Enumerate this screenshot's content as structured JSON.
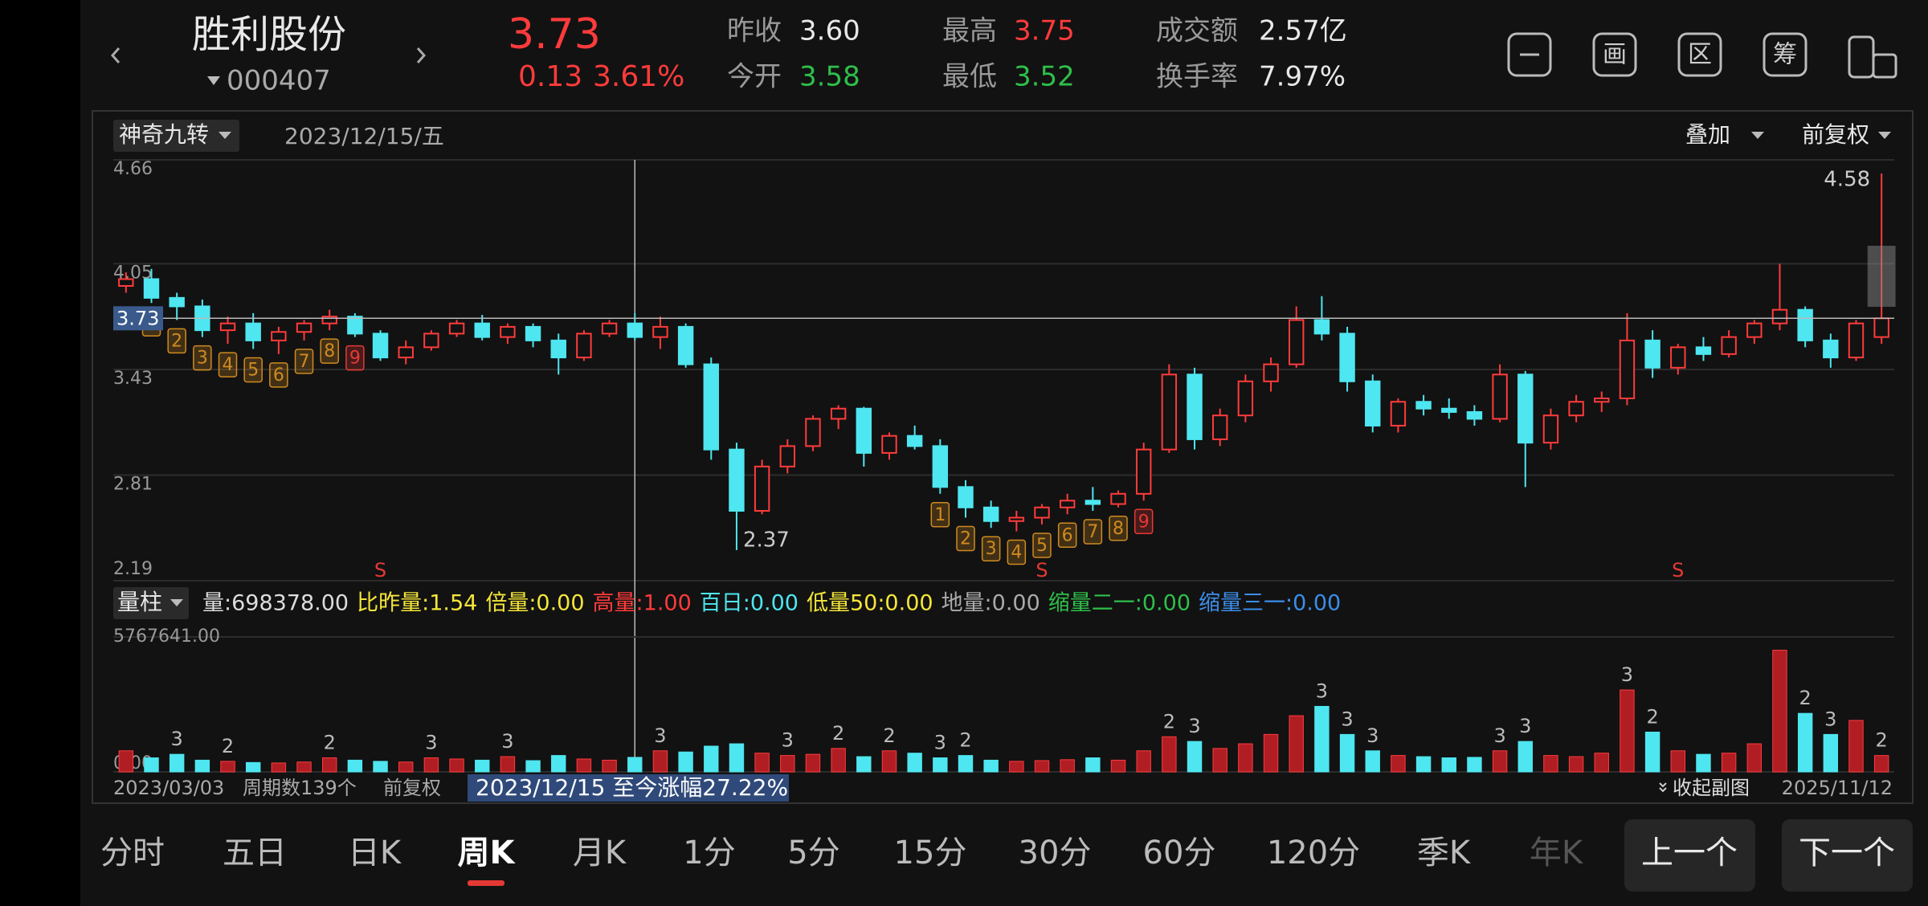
{
  "header": {
    "name": "胜利股份",
    "code": "000407",
    "price": "3.73",
    "change": "0.13",
    "change_pct": "3.61%",
    "stats": [
      {
        "label": "昨收",
        "value": "3.60",
        "color": "#e8e8e8"
      },
      {
        "label": "今开",
        "value": "3.58",
        "color": "#2fbf4a"
      },
      {
        "label": "最高",
        "value": "3.75",
        "color": "#ff3b3b"
      },
      {
        "label": "最低",
        "value": "3.52",
        "color": "#2fbf4a"
      },
      {
        "label": "成交额",
        "value": "2.57亿",
        "color": "#e8e8e8"
      },
      {
        "label": "换手率",
        "value": "7.97%",
        "color": "#e8e8e8"
      }
    ],
    "icons": [
      "画",
      "区",
      "筹"
    ]
  },
  "toolbar": {
    "indicator": "神奇九转",
    "date": "2023/12/15/五",
    "overlay": "叠加",
    "adjust": "前复权"
  },
  "chart_data": {
    "type": "candlestick",
    "ylim": [
      2.19,
      4.66
    ],
    "yticks": [
      4.66,
      4.05,
      3.43,
      2.81,
      2.19
    ],
    "grid": true,
    "current_price": 3.73,
    "crosshair_index": 20,
    "up_color": "#ff3b3b",
    "down_color": "#4ee6f0",
    "turn_color": "#d08a20",
    "nine_color": "#e53935",
    "signal_color": "#e53935",
    "open": [
      3.92,
      3.96,
      3.85,
      3.8,
      3.66,
      3.7,
      3.6,
      3.65,
      3.7,
      3.74,
      3.64,
      3.5,
      3.56,
      3.64,
      3.7,
      3.62,
      3.68,
      3.6,
      3.5,
      3.64,
      3.7,
      3.62,
      3.68,
      3.46,
      2.96,
      2.6,
      2.86,
      2.98,
      3.14,
      3.2,
      2.94,
      3.04,
      2.98,
      2.74,
      2.62,
      2.54,
      2.56,
      2.62,
      2.66,
      2.64,
      2.7,
      2.96,
      3.4,
      3.02,
      3.16,
      3.36,
      3.46,
      3.72,
      3.64,
      3.36,
      3.1,
      3.24,
      3.2,
      3.18,
      3.14,
      3.4,
      3.0,
      3.16,
      3.24,
      3.26,
      3.6,
      3.44,
      3.56,
      3.52,
      3.62,
      3.7,
      3.78,
      3.6,
      3.5,
      3.62
    ],
    "high": [
      4.0,
      4.02,
      3.88,
      3.84,
      3.74,
      3.76,
      3.68,
      3.72,
      3.78,
      3.76,
      3.66,
      3.6,
      3.66,
      3.72,
      3.75,
      3.7,
      3.7,
      3.64,
      3.66,
      3.72,
      3.76,
      3.74,
      3.7,
      3.5,
      3.0,
      2.9,
      3.02,
      3.16,
      3.22,
      3.21,
      3.06,
      3.1,
      3.02,
      2.78,
      2.66,
      2.6,
      2.64,
      2.7,
      2.74,
      2.72,
      3.0,
      3.46,
      3.44,
      3.2,
      3.4,
      3.5,
      3.8,
      3.86,
      3.68,
      3.4,
      3.26,
      3.28,
      3.26,
      3.22,
      3.46,
      3.42,
      3.2,
      3.28,
      3.3,
      3.76,
      3.66,
      3.58,
      3.62,
      3.66,
      3.72,
      4.05,
      3.8,
      3.64,
      3.72,
      4.58
    ],
    "low": [
      3.88,
      3.82,
      3.72,
      3.62,
      3.58,
      3.55,
      3.52,
      3.6,
      3.66,
      3.62,
      3.48,
      3.46,
      3.54,
      3.62,
      3.6,
      3.58,
      3.56,
      3.4,
      3.48,
      3.62,
      3.6,
      3.55,
      3.44,
      2.9,
      2.37,
      2.58,
      2.82,
      2.95,
      3.08,
      2.86,
      2.9,
      2.96,
      2.7,
      2.56,
      2.5,
      2.48,
      2.52,
      2.58,
      2.6,
      2.62,
      2.66,
      2.94,
      2.96,
      2.98,
      3.12,
      3.3,
      3.44,
      3.6,
      3.3,
      3.06,
      3.06,
      3.16,
      3.14,
      3.1,
      3.12,
      2.74,
      2.96,
      3.12,
      3.18,
      3.22,
      3.38,
      3.4,
      3.48,
      3.5,
      3.58,
      3.66,
      3.56,
      3.44,
      3.48,
      3.58
    ],
    "close": [
      3.96,
      3.85,
      3.8,
      3.66,
      3.7,
      3.6,
      3.65,
      3.7,
      3.74,
      3.64,
      3.5,
      3.56,
      3.64,
      3.7,
      3.62,
      3.68,
      3.6,
      3.5,
      3.64,
      3.7,
      3.62,
      3.68,
      3.46,
      2.96,
      2.6,
      2.86,
      2.98,
      3.14,
      3.2,
      2.94,
      3.04,
      2.98,
      2.74,
      2.62,
      2.54,
      2.56,
      2.62,
      2.66,
      2.64,
      2.7,
      2.96,
      3.4,
      3.02,
      3.16,
      3.36,
      3.46,
      3.72,
      3.64,
      3.36,
      3.1,
      3.24,
      3.2,
      3.18,
      3.14,
      3.4,
      3.0,
      3.16,
      3.24,
      3.26,
      3.6,
      3.44,
      3.56,
      3.52,
      3.62,
      3.7,
      3.78,
      3.6,
      3.5,
      3.7,
      3.73
    ],
    "max_index": 69,
    "min_index": 24,
    "nine_turn": [
      null,
      1,
      2,
      3,
      4,
      5,
      6,
      7,
      8,
      9,
      null,
      null,
      null,
      null,
      null,
      null,
      null,
      null,
      null,
      null,
      null,
      null,
      null,
      null,
      null,
      null,
      null,
      null,
      null,
      null,
      null,
      null,
      1,
      2,
      3,
      4,
      5,
      6,
      7,
      8,
      9,
      null,
      null,
      null,
      null,
      null,
      null,
      null,
      null,
      null,
      null,
      null,
      null,
      null,
      null,
      null,
      null,
      null,
      null,
      null,
      null,
      null,
      null,
      null,
      null,
      null,
      null,
      null,
      null,
      null
    ],
    "signals": [
      null,
      null,
      null,
      null,
      null,
      null,
      null,
      null,
      null,
      null,
      "S",
      null,
      null,
      null,
      null,
      null,
      null,
      null,
      null,
      null,
      null,
      null,
      null,
      null,
      null,
      null,
      null,
      null,
      null,
      null,
      null,
      null,
      null,
      null,
      null,
      null,
      "S",
      null,
      null,
      null,
      null,
      null,
      null,
      null,
      null,
      null,
      null,
      null,
      null,
      null,
      null,
      null,
      null,
      null,
      null,
      null,
      null,
      null,
      null,
      null,
      null,
      "S",
      null,
      null,
      null,
      null,
      null,
      null,
      null,
      null
    ],
    "volume_panel": {
      "label": "量柱",
      "indicators": [
        {
          "text": "量:698378.00",
          "color": "#dddddd"
        },
        {
          "text": "比昨量:1.54",
          "color": "#f5e63a"
        },
        {
          "text": "倍量:0.00",
          "color": "#f5e63a"
        },
        {
          "text": "高量:1.00",
          "color": "#ff3b3b"
        },
        {
          "text": "百日:0.00",
          "color": "#4ee6f0"
        },
        {
          "text": "低量50:0.00",
          "color": "#f5e63a"
        },
        {
          "text": "地量:0.00",
          "color": "#aaaaaa"
        },
        {
          "text": "缩量二一:0.00",
          "color": "#2fbf4a"
        },
        {
          "text": "缩量三一:0.00",
          "color": "#3b8de8"
        }
      ],
      "ylim": [
        0,
        5767641
      ],
      "yticks": [
        {
          "value": 5767641,
          "label": "5767641.00"
        },
        {
          "value": 0,
          "label": "0.00"
        }
      ],
      "values": [
        900000,
        600000,
        750000,
        500000,
        450000,
        400000,
        380000,
        420000,
        600000,
        500000,
        450000,
        420000,
        600000,
        550000,
        500000,
        650000,
        480000,
        700000,
        550000,
        500000,
        620000,
        900000,
        850000,
        1100000,
        1200000,
        800000,
        700000,
        750000,
        1000000,
        650000,
        900000,
        800000,
        600000,
        700000,
        500000,
        450000,
        480000,
        520000,
        600000,
        500000,
        900000,
        1500000,
        1300000,
        1000000,
        1200000,
        1600000,
        2400000,
        2800000,
        1600000,
        900000,
        700000,
        650000,
        600000,
        620000,
        900000,
        1300000,
        700000,
        650000,
        800000,
        3500000,
        1700000,
        900000,
        750000,
        800000,
        1200000,
        5200000,
        2500000,
        1600000,
        2200000,
        698378
      ],
      "tags": [
        null,
        null,
        3,
        null,
        2,
        null,
        null,
        null,
        2,
        null,
        null,
        null,
        3,
        null,
        null,
        3,
        null,
        null,
        null,
        null,
        null,
        3,
        null,
        null,
        null,
        null,
        3,
        null,
        2,
        null,
        2,
        null,
        3,
        2,
        null,
        null,
        null,
        null,
        null,
        null,
        null,
        2,
        3,
        null,
        null,
        null,
        null,
        3,
        3,
        3,
        null,
        null,
        null,
        null,
        3,
        3,
        null,
        null,
        null,
        3,
        2,
        null,
        null,
        null,
        null,
        null,
        2,
        3,
        null,
        2
      ]
    },
    "start_date": "2023/03/03",
    "end_date": "2025/11/12",
    "period_count": "周期数139个",
    "adjust": "前复权",
    "range_label": "2023/12/15 至今涨幅27.22%",
    "collapse": "收起副图"
  },
  "tabs": {
    "items": [
      "分时",
      "五日",
      "日K",
      "周K",
      "月K",
      "1分",
      "5分",
      "15分",
      "30分",
      "60分",
      "120分",
      "季K",
      "年K"
    ],
    "selected": 3,
    "dimmed": 12,
    "buttons": [
      "上一个",
      "下一个"
    ]
  }
}
